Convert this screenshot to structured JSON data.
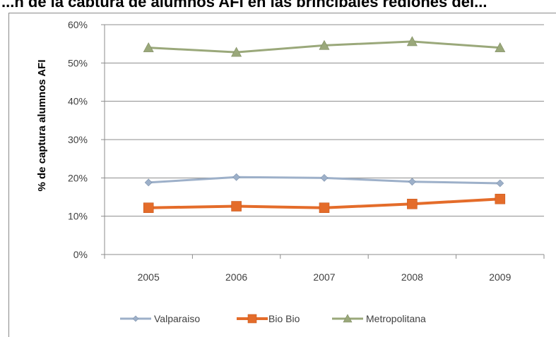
{
  "header": {
    "partial_title": "...n de la captura de alumnos AFI en las principales regiones del..."
  },
  "colors": {
    "grid": "#8c8c8c",
    "axis": "#8c8c8c",
    "Valparaiso": "#9db0c9",
    "Bio Bio": "#e46c2a",
    "Metropolitana": "#9aa87a"
  },
  "chart_data": {
    "type": "line",
    "title": "",
    "xlabel": "",
    "ylabel": "% de captura alumnos AFI",
    "categories": [
      "2005",
      "2006",
      "2007",
      "2008",
      "2009"
    ],
    "y_ticks": [
      "0%",
      "10%",
      "20%",
      "30%",
      "40%",
      "50%",
      "60%"
    ],
    "ylim": [
      0,
      0.6
    ],
    "grid": true,
    "legend_position": "bottom",
    "series": [
      {
        "name": "Valparaiso",
        "marker": "diamond",
        "values": [
          0.188,
          0.202,
          0.2,
          0.19,
          0.186
        ]
      },
      {
        "name": "Bio Bio",
        "marker": "square",
        "values": [
          0.122,
          0.126,
          0.122,
          0.132,
          0.145
        ]
      },
      {
        "name": "Metropolitana",
        "marker": "triangle",
        "values": [
          0.54,
          0.528,
          0.546,
          0.556,
          0.54
        ]
      }
    ]
  }
}
